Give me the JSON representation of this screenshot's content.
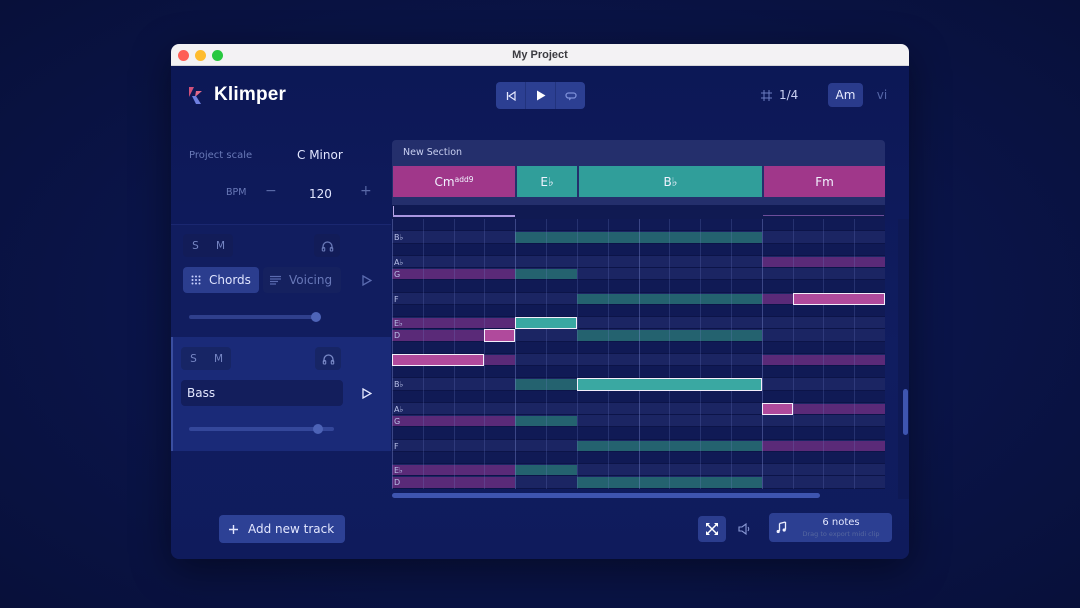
{
  "window": {
    "title": "My Project"
  },
  "header": {
    "logo_text": "Klimper",
    "transport": {
      "rewind": "skip-to-start",
      "play": "play",
      "loop": "loop"
    },
    "time_signature": "1/4",
    "key_button": "Am",
    "key_alt": "vi"
  },
  "project": {
    "scale_label": "Project scale",
    "scale_value": "C Minor",
    "bpm_label": "BPM",
    "bpm_value": "120",
    "bpm_minus": "−",
    "bpm_plus": "+"
  },
  "tracks": [
    {
      "solo": "S",
      "mute": "M",
      "mode_primary": "Chords",
      "mode_secondary": "Voicing",
      "volume_pct": 92
    },
    {
      "solo": "S",
      "mute": "M",
      "name": "Bass",
      "volume_pct": 90
    }
  ],
  "section": {
    "title": "New Section",
    "chords": [
      {
        "root": "Cm",
        "ext": "add9",
        "start": 0,
        "len": 4,
        "color": "#a0378a"
      },
      {
        "root": "E♭",
        "ext": "",
        "start": 4,
        "len": 2,
        "color": "#309e9a"
      },
      {
        "root": "B♭",
        "ext": "",
        "start": 6,
        "len": 6,
        "color": "#309e9a"
      },
      {
        "root": "Fm",
        "ext": "",
        "start": 12,
        "len": 4,
        "color": "#a0378a"
      }
    ]
  },
  "piano_roll": {
    "columns": 16,
    "rows": [
      "B",
      "B♭",
      "A",
      "A♭",
      "G",
      "G♭",
      "F",
      "E",
      "E♭",
      "D",
      "D♭",
      "C",
      "B",
      "B♭",
      "A",
      "A♭",
      "G",
      "G♭",
      "F",
      "E",
      "E♭",
      "D"
    ],
    "labels": {
      "1": "B♭",
      "3": "A♭",
      "4": "G",
      "6": "F",
      "8": "E♭",
      "9": "D",
      "13": "B♭",
      "15": "A♭",
      "16": "G",
      "18": "F",
      "20": "E♭",
      "21": "D"
    },
    "selected_notes": [
      {
        "row": 11,
        "start": 0,
        "len": 3,
        "color": "#b04a9c"
      },
      {
        "row": 9,
        "start": 3,
        "len": 1,
        "color": "#b04a9c"
      },
      {
        "row": 8,
        "start": 4,
        "len": 2,
        "color": "#3aa8a2"
      },
      {
        "row": 13,
        "start": 6,
        "len": 6,
        "color": "#3aa8a2"
      },
      {
        "row": 6,
        "start": 13,
        "len": 3,
        "color": "#b04a9c"
      },
      {
        "row": 15,
        "start": 12,
        "len": 1,
        "color": "#b04a9c"
      }
    ]
  },
  "footer": {
    "add_track": "Add new track",
    "notes_count": "6 notes",
    "export_hint": "Drag to export midi clip"
  },
  "colors": {
    "accent_magenta": "#a0378a",
    "accent_teal": "#309e9a",
    "bg": "#0c1755"
  }
}
